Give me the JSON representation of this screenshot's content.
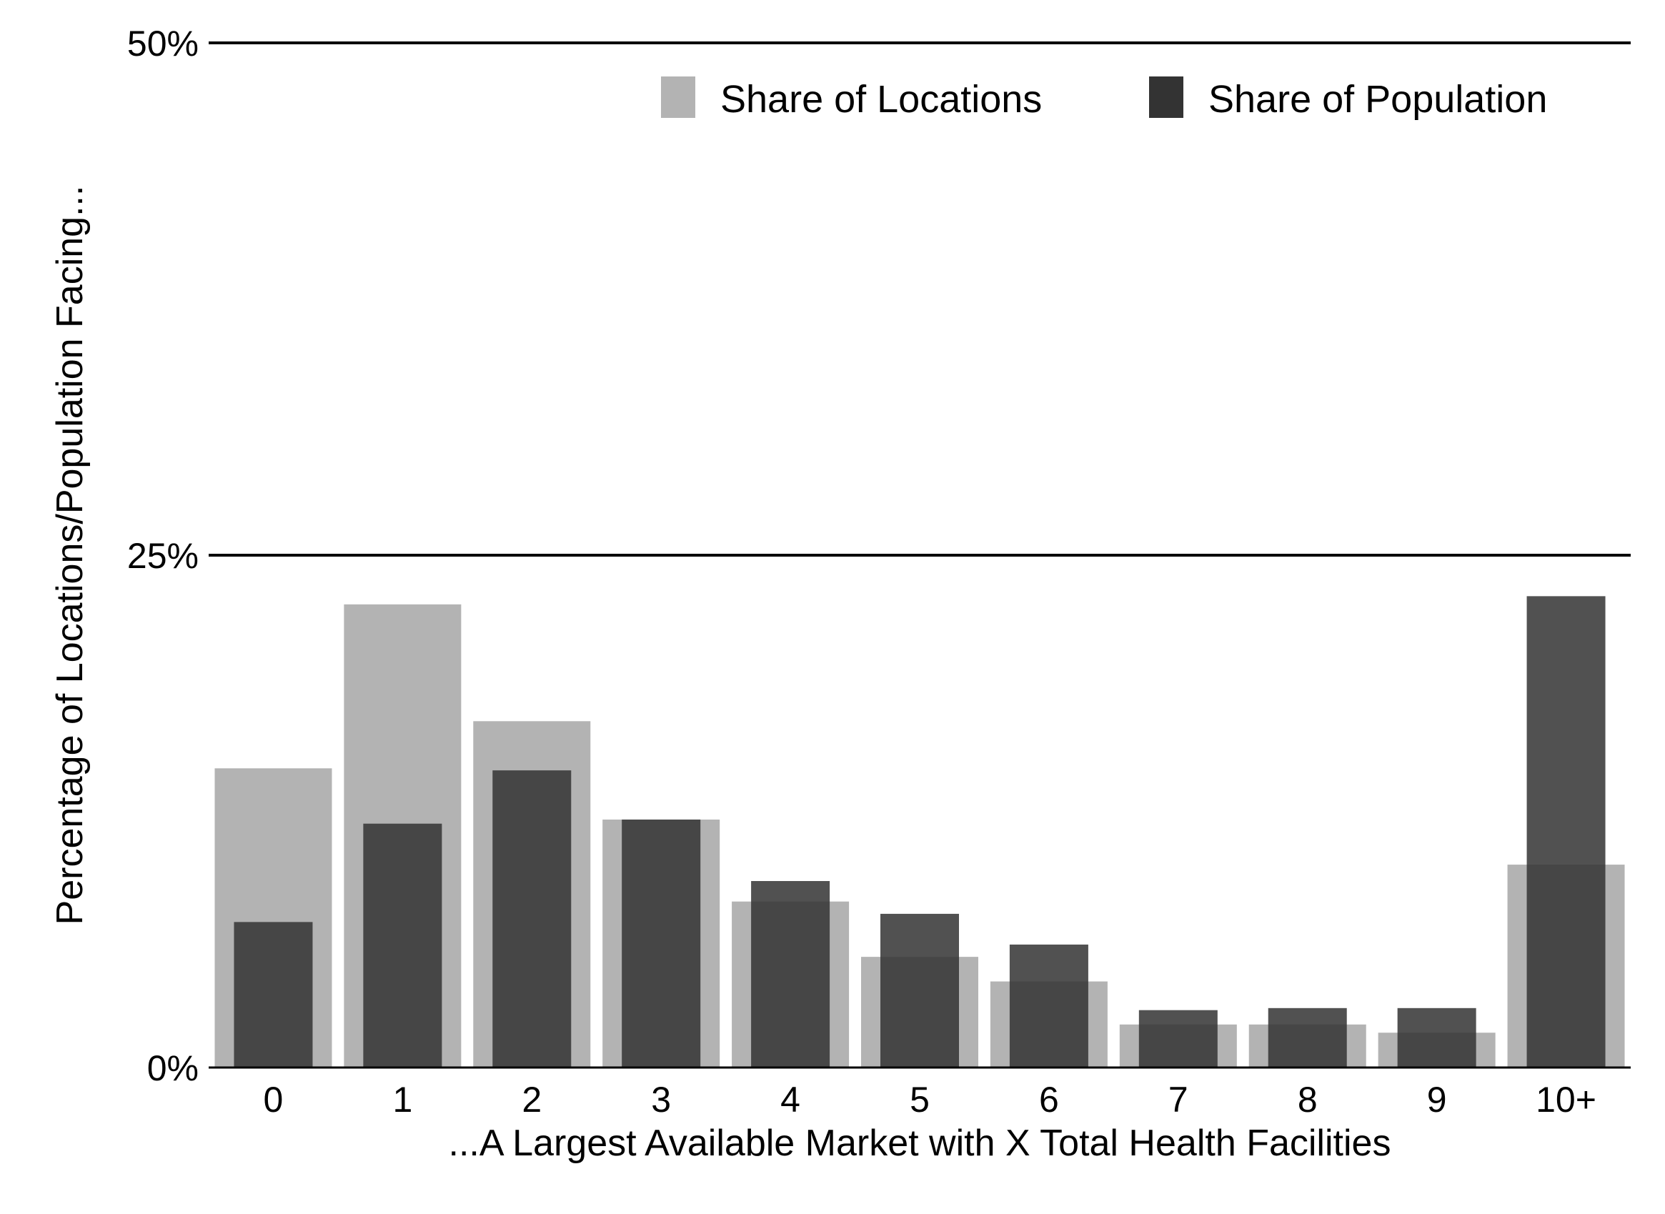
{
  "chart_data": {
    "type": "bar",
    "title": "",
    "xlabel": "...A Largest Available Market with X Total Health Facilities",
    "ylabel": "Percentage of Locations/Population Facing...",
    "categories": [
      "0",
      "1",
      "2",
      "3",
      "4",
      "5",
      "6",
      "7",
      "8",
      "9",
      "10+"
    ],
    "ylim": [
      0,
      50
    ],
    "yticks": [
      0,
      25,
      50
    ],
    "ytick_labels": [
      "0%",
      "25%",
      "50%"
    ],
    "grid": "horizontal lines at 25% and 50%",
    "legend_position": "top-right",
    "series": [
      {
        "name": "Share of Locations",
        "color": "#b3b3b3",
        "values": [
          14.6,
          22.6,
          16.9,
          12.1,
          8.1,
          5.4,
          4.2,
          2.1,
          2.1,
          1.7,
          9.9
        ]
      },
      {
        "name": "Share of Population",
        "color": "#333333",
        "values": [
          7.1,
          11.9,
          14.5,
          12.1,
          9.1,
          7.5,
          6.0,
          2.8,
          2.9,
          2.9,
          23.0
        ]
      }
    ]
  }
}
